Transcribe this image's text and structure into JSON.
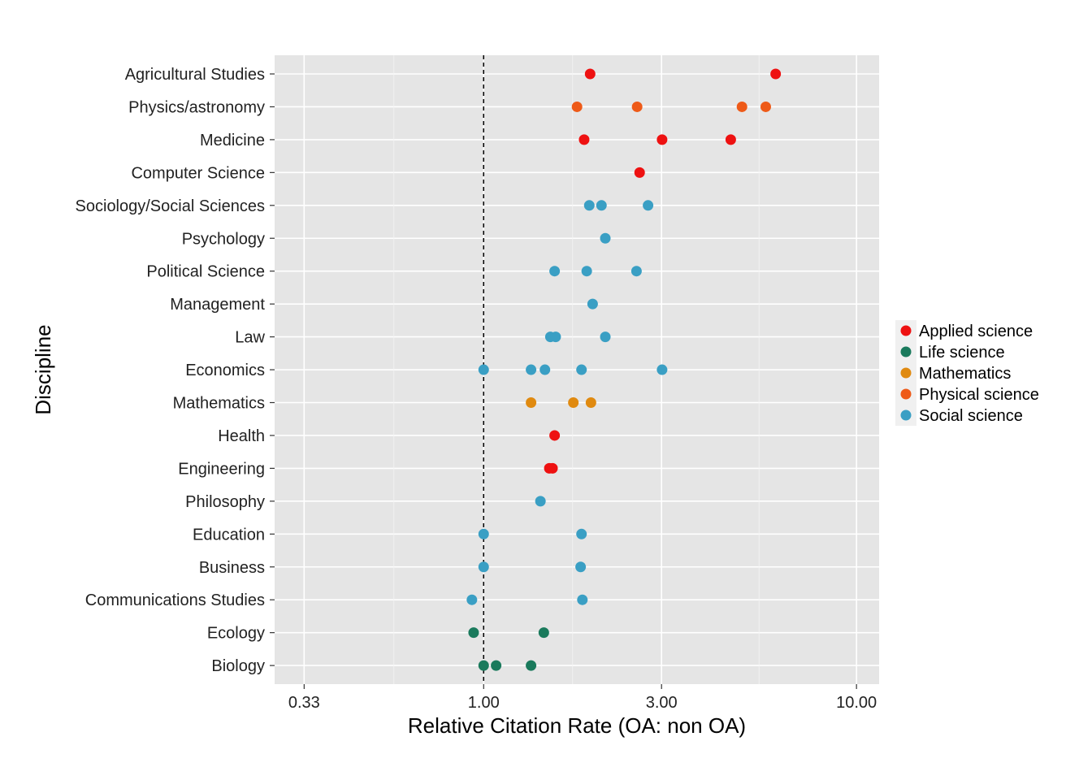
{
  "chart_data": {
    "type": "scatter",
    "xlabel": "Relative Citation Rate (OA: non OA)",
    "ylabel": "Discipline",
    "x_scale": "log",
    "xlim": [
      0.275,
      11.5
    ],
    "x_ticks": [
      0.33,
      1.0,
      3.0,
      10.0
    ],
    "x_tick_labels": [
      "0.33",
      "1.00",
      "3.00",
      "10.00"
    ],
    "reference_line": 1.0,
    "grid": true,
    "legend_position": "right",
    "categories": [
      "Agricultural Studies",
      "Physics/astronomy",
      "Medicine",
      "Computer Science",
      "Sociology/Social Sciences",
      "Psychology",
      "Political Science",
      "Management",
      "Law",
      "Economics",
      "Mathematics",
      "Health",
      "Engineering",
      "Philosophy",
      "Education",
      "Business",
      "Communications Studies",
      "Ecology",
      "Biology"
    ],
    "series": [
      {
        "name": "Applied science",
        "color": "#ee1111",
        "points": [
          {
            "category": "Agricultural Studies",
            "x": 1.93
          },
          {
            "category": "Agricultural Studies",
            "x": 6.07
          },
          {
            "category": "Medicine",
            "x": 1.86
          },
          {
            "category": "Medicine",
            "x": 3.01
          },
          {
            "category": "Medicine",
            "x": 4.6
          },
          {
            "category": "Computer Science",
            "x": 2.62
          },
          {
            "category": "Health",
            "x": 1.55
          },
          {
            "category": "Engineering",
            "x": 1.5
          },
          {
            "category": "Engineering",
            "x": 1.53
          }
        ]
      },
      {
        "name": "Life science",
        "color": "#1a7a5c",
        "points": [
          {
            "category": "Ecology",
            "x": 0.94
          },
          {
            "category": "Ecology",
            "x": 1.45
          },
          {
            "category": "Biology",
            "x": 1.0
          },
          {
            "category": "Biology",
            "x": 1.08
          },
          {
            "category": "Biology",
            "x": 1.34
          }
        ]
      },
      {
        "name": "Mathematics",
        "color": "#e08a10",
        "points": [
          {
            "category": "Mathematics",
            "x": 1.34
          },
          {
            "category": "Mathematics",
            "x": 1.74
          },
          {
            "category": "Mathematics",
            "x": 1.94
          }
        ]
      },
      {
        "name": "Physical science",
        "color": "#ee5a18",
        "points": [
          {
            "category": "Physics/astronomy",
            "x": 1.78
          },
          {
            "category": "Physics/astronomy",
            "x": 2.58
          },
          {
            "category": "Physics/astronomy",
            "x": 4.93
          },
          {
            "category": "Physics/astronomy",
            "x": 5.71
          }
        ]
      },
      {
        "name": "Social science",
        "color": "#3a9fc4",
        "points": [
          {
            "category": "Sociology/Social Sciences",
            "x": 1.92
          },
          {
            "category": "Sociology/Social Sciences",
            "x": 2.07
          },
          {
            "category": "Sociology/Social Sciences",
            "x": 2.76
          },
          {
            "category": "Psychology",
            "x": 2.12
          },
          {
            "category": "Political Science",
            "x": 1.55
          },
          {
            "category": "Political Science",
            "x": 1.89
          },
          {
            "category": "Political Science",
            "x": 2.57
          },
          {
            "category": "Management",
            "x": 1.96
          },
          {
            "category": "Law",
            "x": 1.51
          },
          {
            "category": "Law",
            "x": 1.56
          },
          {
            "category": "Law",
            "x": 2.12
          },
          {
            "category": "Economics",
            "x": 1.0
          },
          {
            "category": "Economics",
            "x": 1.34
          },
          {
            "category": "Economics",
            "x": 1.46
          },
          {
            "category": "Economics",
            "x": 1.83
          },
          {
            "category": "Economics",
            "x": 3.01
          },
          {
            "category": "Philosophy",
            "x": 1.42
          },
          {
            "category": "Education",
            "x": 1.0
          },
          {
            "category": "Education",
            "x": 1.83
          },
          {
            "category": "Business",
            "x": 1.0
          },
          {
            "category": "Business",
            "x": 1.82
          },
          {
            "category": "Communications Studies",
            "x": 0.93
          },
          {
            "category": "Communications Studies",
            "x": 1.84
          }
        ]
      }
    ]
  }
}
